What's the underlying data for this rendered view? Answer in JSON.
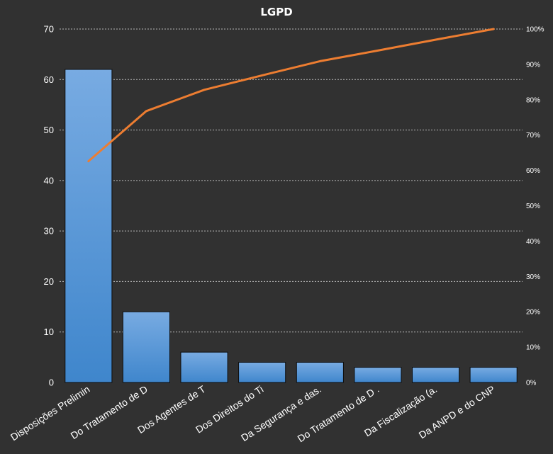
{
  "chart_data": {
    "type": "bar",
    "title": "LGPD",
    "categories": [
      "Disposições Prelimin",
      "Do Tratamento de D",
      "Dos Agentes de T",
      "Dos Direitos do Ti",
      "Da Segurança e das.",
      "Do Tratamento de D .",
      "Da Fiscalização (a.",
      "Da ANPD e do CNP"
    ],
    "values": [
      62,
      14,
      6,
      4,
      4,
      3,
      3,
      3
    ],
    "cumulative_percent": [
      62.6,
      76.8,
      82.8,
      86.9,
      90.9,
      93.9,
      97.0,
      100
    ],
    "ylim": [
      0,
      70
    ],
    "yticks": [
      "0",
      "10",
      "20",
      "30",
      "40",
      "50",
      "60",
      "70"
    ],
    "y2lim": [
      0,
      100
    ],
    "y2ticks": [
      "0%",
      "10%",
      "20%",
      "30%",
      "40%",
      "50%",
      "60%",
      "70%",
      "80%",
      "90%",
      "100%"
    ],
    "grid": true,
    "colors": {
      "background": "#313131",
      "bar_top": "#78abe2",
      "bar_bottom": "#3f86cc",
      "line": "#ed7d31",
      "grid": "#b8b8b8",
      "text": "#ffffff"
    }
  }
}
